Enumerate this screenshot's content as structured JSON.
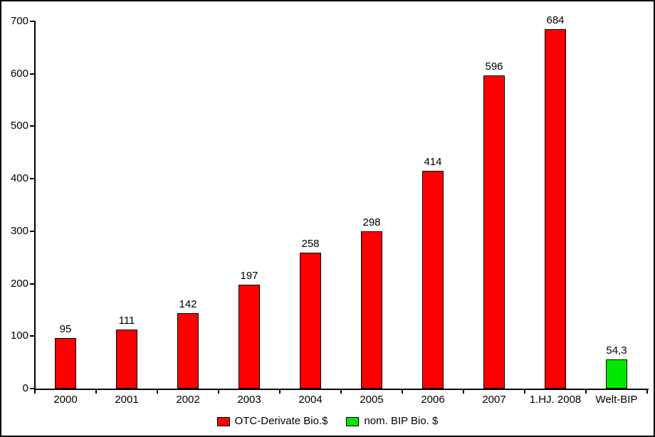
{
  "chart_data": {
    "type": "bar",
    "title": "",
    "xlabel": "",
    "ylabel": "",
    "ylim": [
      0,
      700
    ],
    "ytick_step": 100,
    "yticks": [
      "0",
      "100",
      "200",
      "300",
      "400",
      "500",
      "600",
      "700"
    ],
    "grid": false,
    "legend_position": "bottom",
    "categories": [
      "2000",
      "2001",
      "2002",
      "2003",
      "2004",
      "2005",
      "2006",
      "2007",
      "1.HJ. 2008",
      "Welt-BIP"
    ],
    "series": [
      {
        "name": "OTC-Derivate Bio.$",
        "color": "#ff0000",
        "values": [
          95,
          111,
          142,
          197,
          258,
          298,
          414,
          596,
          684,
          null
        ]
      },
      {
        "name": "nom. BIP Bio. $",
        "color": "#00e800",
        "values": [
          null,
          null,
          null,
          null,
          null,
          null,
          null,
          null,
          null,
          54.3
        ]
      }
    ],
    "bars": [
      {
        "category": "2000",
        "value": 95,
        "label": "95",
        "color": "#ff0000"
      },
      {
        "category": "2001",
        "value": 111,
        "label": "111",
        "color": "#ff0000"
      },
      {
        "category": "2002",
        "value": 142,
        "label": "142",
        "color": "#ff0000"
      },
      {
        "category": "2003",
        "value": 197,
        "label": "197",
        "color": "#ff0000"
      },
      {
        "category": "2004",
        "value": 258,
        "label": "258",
        "color": "#ff0000"
      },
      {
        "category": "2005",
        "value": 298,
        "label": "298",
        "color": "#ff0000"
      },
      {
        "category": "2006",
        "value": 414,
        "label": "414",
        "color": "#ff0000"
      },
      {
        "category": "2007",
        "value": 596,
        "label": "596",
        "color": "#ff0000"
      },
      {
        "category": "1.HJ. 2008",
        "value": 684,
        "label": "684",
        "color": "#ff0000"
      },
      {
        "category": "Welt-BIP",
        "value": 54.3,
        "label": "54,3",
        "color": "#00e800"
      }
    ],
    "legend": [
      {
        "label": "OTC-Derivate Bio.$",
        "color": "#ff0000"
      },
      {
        "label": "nom. BIP Bio. $",
        "color": "#00e800"
      }
    ]
  },
  "colors": {
    "bar_red": "#ff0000",
    "bar_green": "#00e800",
    "axis": "#000000",
    "text": "#000000",
    "background": "#ffffff",
    "frame_border": "#000000"
  }
}
